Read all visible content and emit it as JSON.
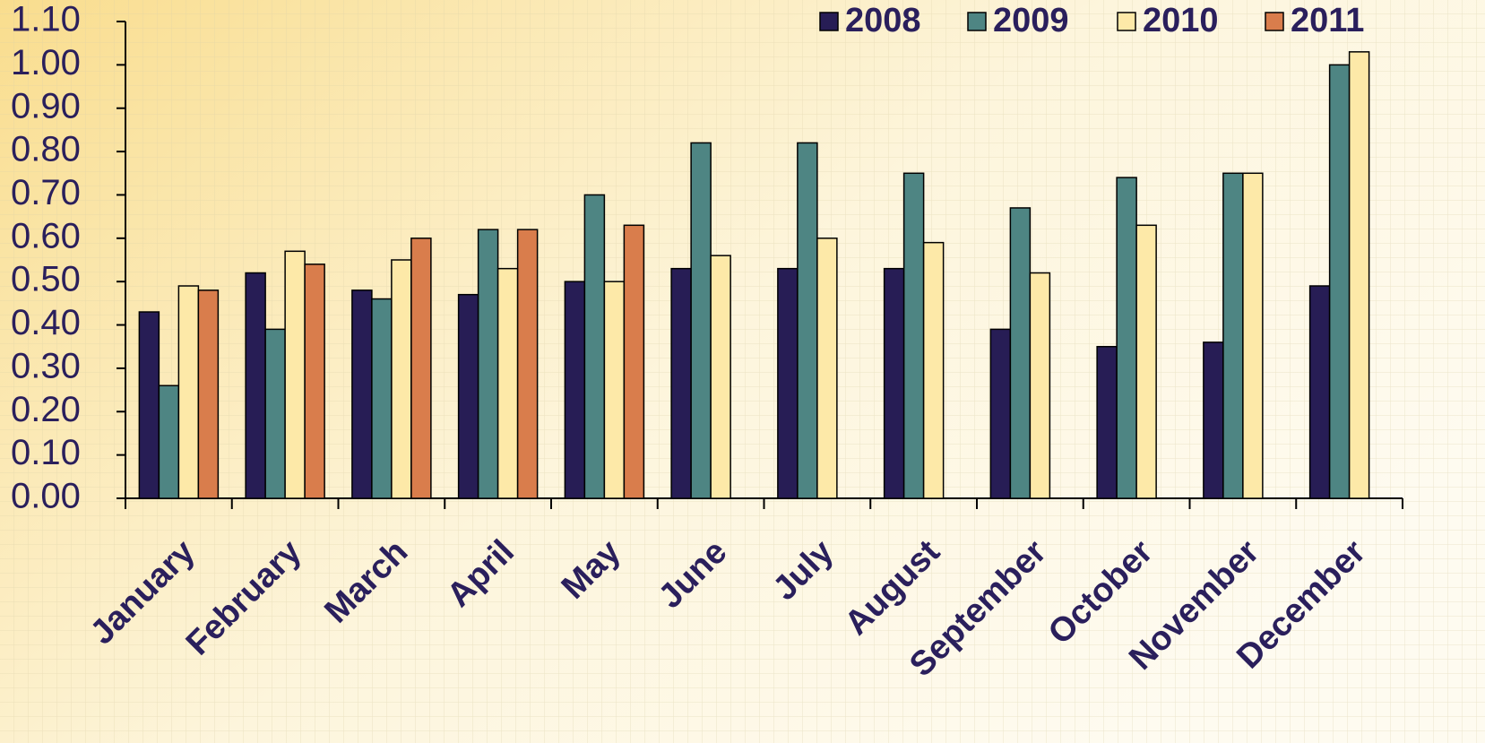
{
  "chart_data": {
    "type": "bar",
    "categories": [
      "January",
      "February",
      "March",
      "April",
      "May",
      "June",
      "July",
      "August",
      "September",
      "October",
      "November",
      "December"
    ],
    "series": [
      {
        "name": "2008",
        "color": "#271d55",
        "values": [
          0.43,
          0.52,
          0.48,
          0.47,
          0.5,
          0.53,
          0.53,
          0.53,
          0.39,
          0.35,
          0.36,
          0.49
        ]
      },
      {
        "name": "2009",
        "color": "#4e8583",
        "values": [
          0.26,
          0.39,
          0.46,
          0.62,
          0.7,
          0.82,
          0.82,
          0.75,
          0.67,
          0.74,
          0.75,
          1.0
        ]
      },
      {
        "name": "2010",
        "color": "#fde9a8",
        "values": [
          0.49,
          0.57,
          0.55,
          0.53,
          0.5,
          0.56,
          0.6,
          0.59,
          0.52,
          0.63,
          0.75,
          1.03
        ]
      },
      {
        "name": "2011",
        "color": "#d97d4c",
        "values": [
          0.48,
          0.54,
          0.6,
          0.62,
          0.63,
          null,
          null,
          null,
          null,
          null,
          null,
          null
        ]
      }
    ],
    "ylim": [
      0,
      1.1
    ],
    "yticks": [
      {
        "value": 0,
        "label": "0.00"
      },
      {
        "value": 0.1,
        "label": "0.10"
      },
      {
        "value": 0.2,
        "label": "0.20"
      },
      {
        "value": 0.3,
        "label": "0.30"
      },
      {
        "value": 0.4,
        "label": "0.40"
      },
      {
        "value": 0.5,
        "label": "0.50"
      },
      {
        "value": 0.6,
        "label": "0.60"
      },
      {
        "value": 0.7,
        "label": "0.70"
      },
      {
        "value": 0.8,
        "label": "0.80"
      },
      {
        "value": 0.9,
        "label": "0.90"
      },
      {
        "value": 1.0,
        "label": "1.00"
      },
      {
        "value": 1.1,
        "label": "1.10"
      }
    ],
    "legend": "top-right"
  }
}
